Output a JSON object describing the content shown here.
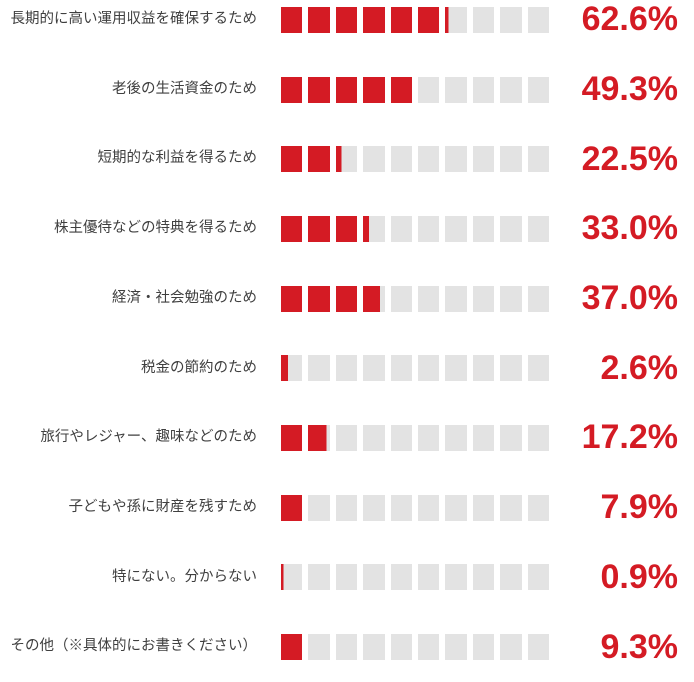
{
  "chart_data": {
    "type": "bar",
    "orientation": "horizontal",
    "title": "",
    "xlabel": "",
    "ylabel": "",
    "xlim": [
      0,
      100
    ],
    "unit": "%",
    "grid": false,
    "legend": "none",
    "segments_per_bar": 10,
    "categories": [
      "長期的に高い運用収益を確保するため",
      "老後の生活資金のため",
      "短期的な利益を得るため",
      "株主優待などの特典を得るため",
      "経済・社会勉強のため",
      "税金の節約のため",
      "旅行やレジャー、趣味などのため",
      "子どもや孫に財産を残すため",
      "特にない。分からない",
      "その他（※具体的にお書きください）"
    ],
    "values": [
      62.6,
      49.3,
      22.5,
      33.0,
      37.0,
      2.6,
      17.2,
      7.9,
      0.9,
      9.3
    ],
    "value_labels": [
      "62.6%",
      "49.3%",
      "22.5%",
      "33.0%",
      "37.0%",
      "2.6%",
      "17.2%",
      "7.9%",
      "0.9%",
      "9.3%"
    ],
    "colors": {
      "fill": "#d41b24",
      "track": "#e3e3e3",
      "category_text": "#3f3f3f",
      "value_text": "#d41b24",
      "background": "#ffffff"
    }
  }
}
